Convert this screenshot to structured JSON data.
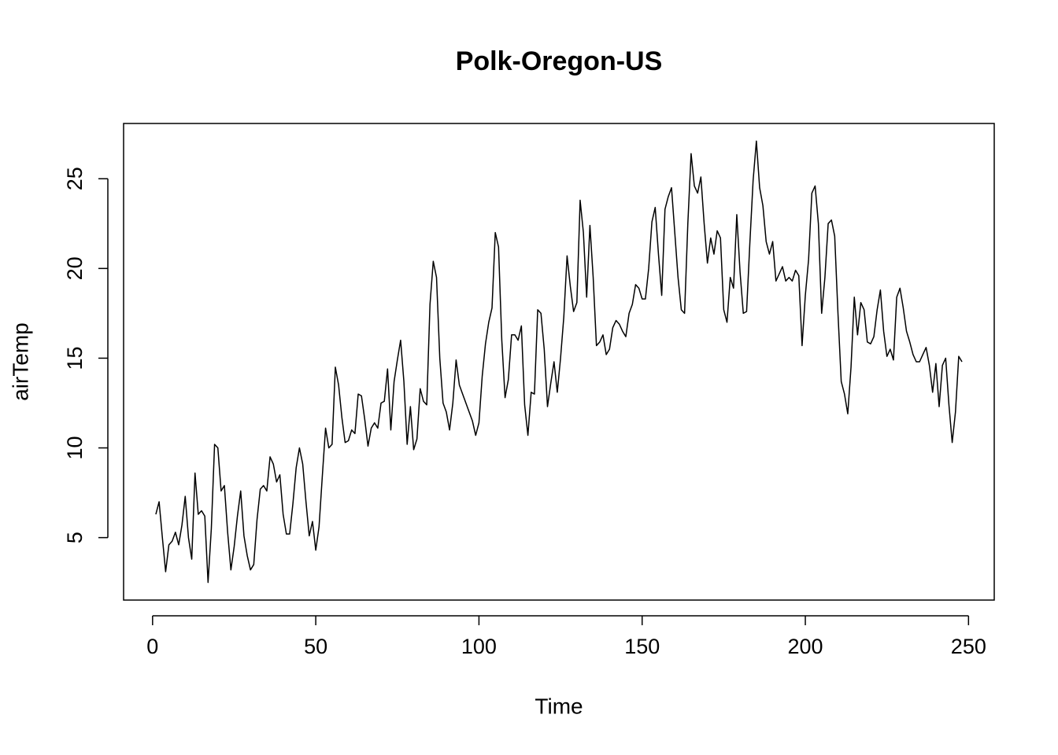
{
  "chart_data": {
    "type": "line",
    "title": "Polk-Oregon-US",
    "xlabel": "Time",
    "ylabel": "airTemp",
    "color": "#000000",
    "x": [
      1,
      2,
      3,
      4,
      5,
      6,
      7,
      8,
      9,
      10,
      11,
      12,
      13,
      14,
      15,
      16,
      17,
      18,
      19,
      20,
      21,
      22,
      23,
      24,
      25,
      26,
      27,
      28,
      29,
      30,
      31,
      32,
      33,
      34,
      35,
      36,
      37,
      38,
      39,
      40,
      41,
      42,
      43,
      44,
      45,
      46,
      47,
      48,
      49,
      50,
      51,
      52,
      53,
      54,
      55,
      56,
      57,
      58,
      59,
      60,
      61,
      62,
      63,
      64,
      65,
      66,
      67,
      68,
      69,
      70,
      71,
      72,
      73,
      74,
      75,
      76,
      77,
      78,
      79,
      80,
      81,
      82,
      83,
      84,
      85,
      86,
      87,
      88,
      89,
      90,
      91,
      92,
      93,
      94,
      95,
      96,
      97,
      98,
      99,
      100,
      101,
      102,
      103,
      104,
      105,
      106,
      107,
      108,
      109,
      110,
      111,
      112,
      113,
      114,
      115,
      116,
      117,
      118,
      119,
      120,
      121,
      122,
      123,
      124,
      125,
      126,
      127,
      128,
      129,
      130,
      131,
      132,
      133,
      134,
      135,
      136,
      137,
      138,
      139,
      140,
      141,
      142,
      143,
      144,
      145,
      146,
      147,
      148,
      149,
      150,
      151,
      152,
      153,
      154,
      155,
      156,
      157,
      158,
      159,
      160,
      161,
      162,
      163,
      164,
      165,
      166,
      167,
      168,
      169,
      170,
      171,
      172,
      173,
      174,
      175,
      176,
      177,
      178,
      179,
      180,
      181,
      182,
      183,
      184,
      185,
      186,
      187,
      188,
      189,
      190,
      191,
      192,
      193,
      194,
      195,
      196,
      197,
      198,
      199,
      200,
      201,
      202,
      203,
      204,
      205,
      206,
      207,
      208,
      209,
      210,
      211,
      212,
      213,
      214,
      215,
      216,
      217,
      218,
      219,
      220,
      221,
      222,
      223,
      224,
      225,
      226,
      227,
      228,
      229,
      230,
      231,
      232,
      233,
      234,
      235,
      236,
      237,
      238,
      239,
      240,
      241,
      242,
      243,
      244,
      245,
      246,
      247,
      248
    ],
    "values": [
      6.3,
      7.0,
      5.0,
      3.1,
      4.6,
      4.8,
      5.3,
      4.6,
      5.7,
      7.3,
      5.0,
      3.8,
      8.6,
      6.3,
      6.5,
      6.2,
      2.5,
      5.5,
      10.2,
      10.0,
      7.6,
      7.9,
      5.3,
      3.2,
      4.5,
      6.2,
      7.6,
      5.1,
      4.0,
      3.2,
      3.5,
      6.0,
      7.7,
      7.9,
      7.6,
      9.5,
      9.1,
      8.1,
      8.5,
      6.3,
      5.2,
      5.2,
      6.9,
      8.9,
      10.0,
      9.1,
      7.0,
      5.1,
      5.9,
      4.3,
      5.6,
      8.4,
      11.1,
      10.0,
      10.2,
      14.5,
      13.5,
      11.7,
      10.3,
      10.4,
      11.0,
      10.8,
      13.0,
      12.9,
      11.6,
      10.1,
      11.1,
      11.4,
      11.1,
      12.5,
      12.6,
      14.4,
      11.0,
      13.7,
      14.9,
      16.0,
      13.7,
      10.2,
      12.3,
      9.9,
      10.5,
      13.3,
      12.6,
      12.4,
      18.0,
      20.4,
      19.5,
      15.0,
      12.5,
      12.0,
      11.0,
      12.5,
      14.9,
      13.5,
      13.0,
      12.5,
      12.0,
      11.5,
      10.7,
      11.4,
      14.0,
      15.8,
      17.0,
      17.8,
      22.0,
      21.2,
      16.0,
      12.8,
      13.8,
      16.3,
      16.3,
      16.0,
      16.8,
      12.4,
      10.7,
      13.1,
      13.0,
      17.7,
      17.5,
      15.5,
      12.3,
      13.6,
      14.8,
      13.1,
      15.0,
      17.3,
      20.7,
      19.0,
      17.6,
      18.1,
      23.8,
      22.0,
      18.4,
      22.4,
      19.5,
      15.7,
      15.9,
      16.3,
      15.2,
      15.5,
      16.7,
      17.1,
      16.9,
      16.5,
      16.2,
      17.5,
      18.0,
      19.1,
      18.9,
      18.3,
      18.3,
      20.0,
      22.6,
      23.4,
      20.8,
      18.5,
      23.3,
      24.0,
      24.5,
      22.0,
      19.5,
      17.7,
      17.5,
      22.5,
      26.4,
      24.6,
      24.2,
      25.1,
      22.5,
      20.3,
      21.7,
      20.8,
      22.1,
      21.7,
      17.7,
      17.0,
      19.5,
      18.9,
      23.0,
      19.8,
      17.5,
      17.6,
      21.4,
      24.9,
      27.1,
      24.5,
      23.5,
      21.5,
      20.8,
      21.5,
      19.3,
      19.7,
      20.1,
      19.3,
      19.5,
      19.3,
      19.9,
      19.6,
      15.7,
      18.5,
      20.5,
      24.2,
      24.6,
      22.5,
      17.5,
      19.5,
      22.5,
      22.7,
      21.8,
      17.5,
      13.7,
      13.0,
      11.9,
      14.5,
      18.4,
      16.3,
      18.1,
      17.7,
      15.9,
      15.8,
      16.2,
      17.7,
      18.8,
      16.5,
      15.1,
      15.5,
      14.9,
      18.4,
      18.9,
      17.8,
      16.5,
      15.9,
      15.2,
      14.8,
      14.8,
      15.2,
      15.6,
      14.6,
      13.1,
      14.7,
      12.3,
      14.6,
      15.0,
      12.4,
      10.3,
      12.0,
      15.1,
      14.8
    ],
    "xlim": [
      -8.88,
      257.88
    ],
    "ylim": [
      1.52,
      28.08
    ],
    "xticks": [
      0,
      50,
      100,
      150,
      200,
      250
    ],
    "yticks": [
      5,
      10,
      15,
      20,
      25
    ]
  }
}
